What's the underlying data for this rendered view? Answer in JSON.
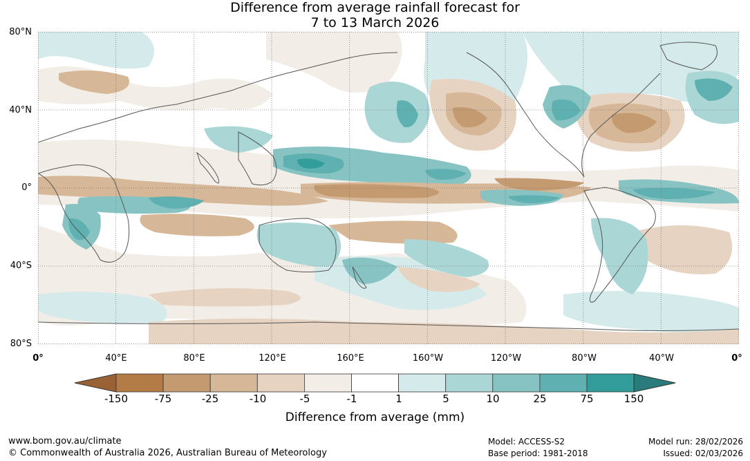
{
  "title": {
    "line1": "Difference from average rainfall forecast for",
    "line2": "7 to 13 March 2026"
  },
  "map": {
    "lat_labels": [
      "80°N",
      "40°N",
      "0°",
      "40°S",
      "80°S"
    ],
    "lon_labels": [
      "0°",
      "40°E",
      "80°E",
      "120°E",
      "160°E",
      "160°W",
      "120°W",
      "80°W",
      "40°W",
      "0°"
    ],
    "colors": {
      "dry_150": "#9a6234",
      "dry_75": "#b37b45",
      "dry_25": "#c49a70",
      "dry_10": "#d6b797",
      "dry_5": "#e6d3c2",
      "dry_1": "#f3ede7",
      "neutral": "#ffffff",
      "wet_1": "#d5eaea",
      "wet_5": "#aad6d6",
      "wet_10": "#87c3c3",
      "wet_25": "#5fb0b0",
      "wet_75": "#339d9b",
      "wet_150": "#2a7c7c"
    }
  },
  "colorbar": {
    "labels": [
      "-150",
      "-75",
      "-25",
      "-10",
      "-5",
      "-1",
      "1",
      "5",
      "10",
      "25",
      "75",
      "150"
    ],
    "colors": [
      "#9a6234",
      "#b37b45",
      "#c49a70",
      "#d6b797",
      "#e6d3c2",
      "#f3ede7",
      "#ffffff",
      "#d5eaea",
      "#aad6d6",
      "#87c3c3",
      "#5fb0b0",
      "#339d9b",
      "#2a7c7c"
    ],
    "title": "Difference from average (mm)"
  },
  "footer": {
    "website": "www.bom.gov.au/climate",
    "copyright": "© Commonwealth of Australia 2026, Australian Bureau of Meteorology",
    "model": "Model: ACCESS-S2",
    "base_period": "Base period: 1981-2018",
    "model_run": "Model run: 28/02/2026",
    "issued": "Issued: 02/03/2026"
  }
}
